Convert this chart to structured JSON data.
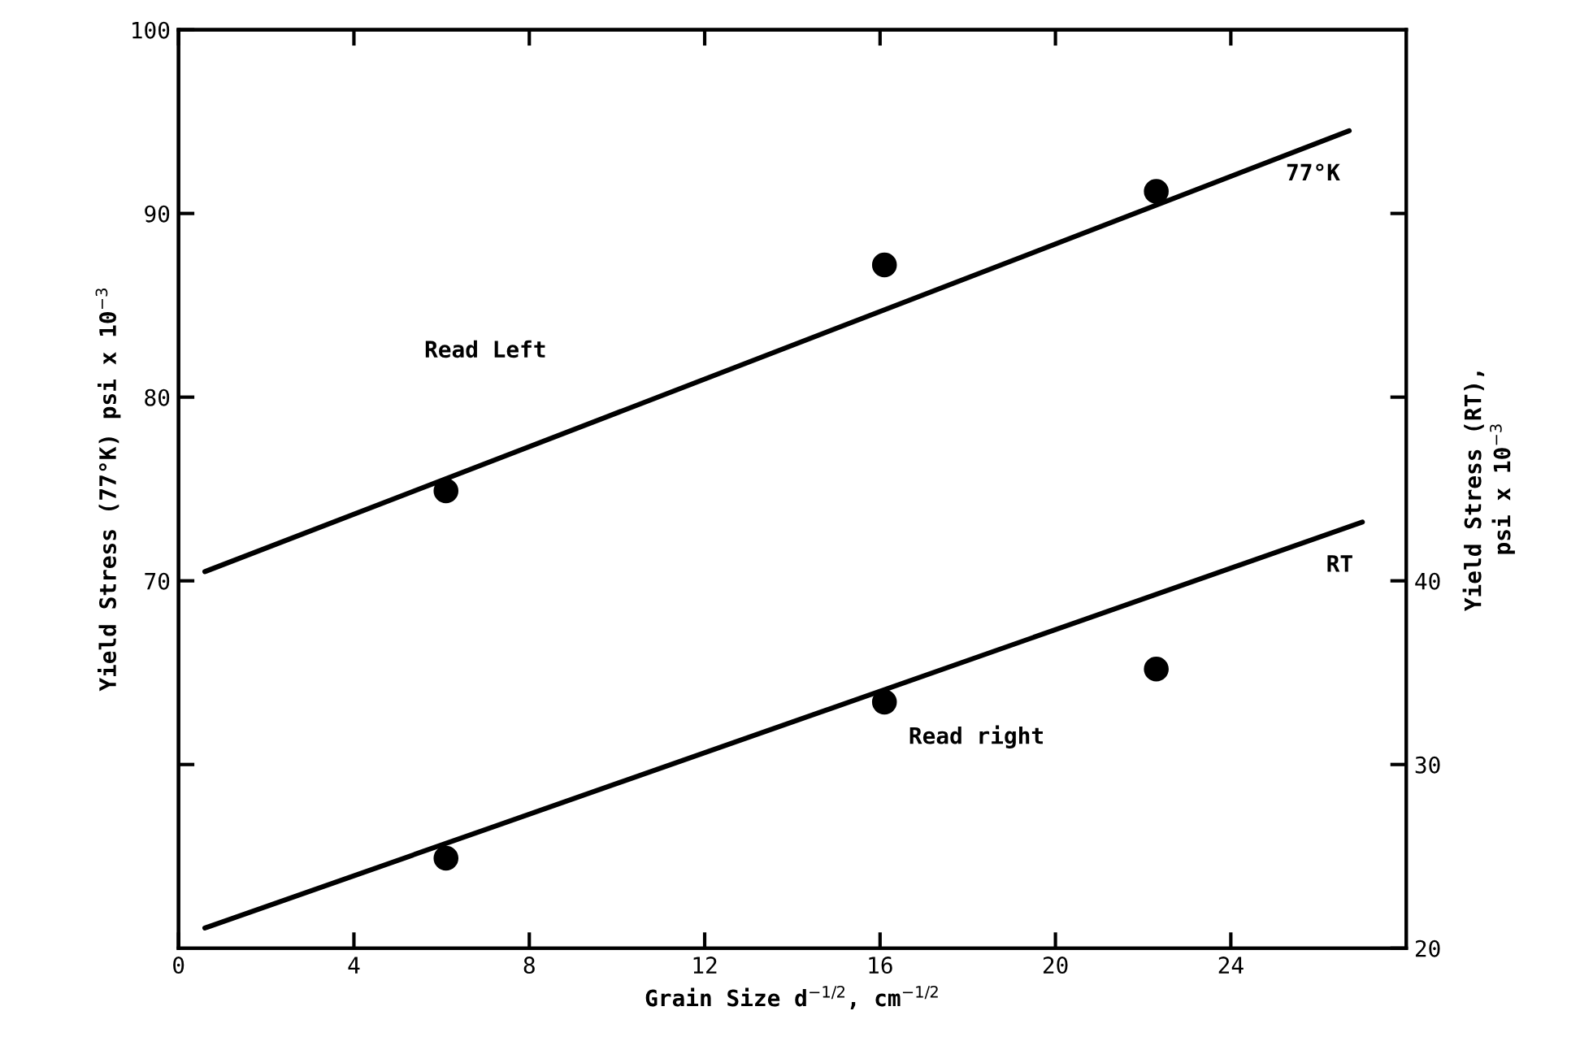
{
  "chart_data": {
    "type": "scatter",
    "xlabel": "Grain Size d$^{−1/2}$, cm$^{−1/2}$",
    "ylabel": "Yield Stress (77°K) psi x 10$^{−3}$",
    "y2label": "Yield Stress (RT),\npsi x 10$^{−3}$",
    "xlim": [
      0,
      28
    ],
    "xticks": [
      0,
      4,
      8,
      12,
      16,
      20,
      24
    ],
    "ylim": [
      50,
      100
    ],
    "yticks": [
      {
        "value": 60,
        "label": null
      },
      70,
      80,
      90,
      100
    ],
    "y2lim": [
      20,
      70
    ],
    "y2ticks": [
      20,
      30,
      40,
      {
        "value": 50,
        "label": null
      },
      {
        "value": 60,
        "label": null
      }
    ],
    "grid": false,
    "legend": false,
    "series": [
      {
        "name": "77°K",
        "type": "line",
        "marker": "none",
        "color": "#000000",
        "x": [
          0.6,
          26.7
        ],
        "values": [
          70.5,
          94.5
        ]
      },
      {
        "marker": "circle",
        "color": "#000000",
        "x": [
          6.1,
          16.1,
          22.3
        ],
        "values": [
          74.9,
          87.2,
          91.2
        ]
      },
      {
        "name": "RT",
        "type": "line",
        "marker": "none",
        "axis": "y2",
        "color": "#000000",
        "x": [
          0.6,
          27.0
        ],
        "values": [
          21.1,
          43.2
        ]
      },
      {
        "marker": "circle",
        "axis": "y2",
        "color": "#000000",
        "x": [
          6.1,
          16.1,
          22.3
        ],
        "values": [
          24.9,
          33.4,
          35.2
        ]
      }
    ],
    "annotations": [
      "Read Left",
      "Read right"
    ]
  }
}
